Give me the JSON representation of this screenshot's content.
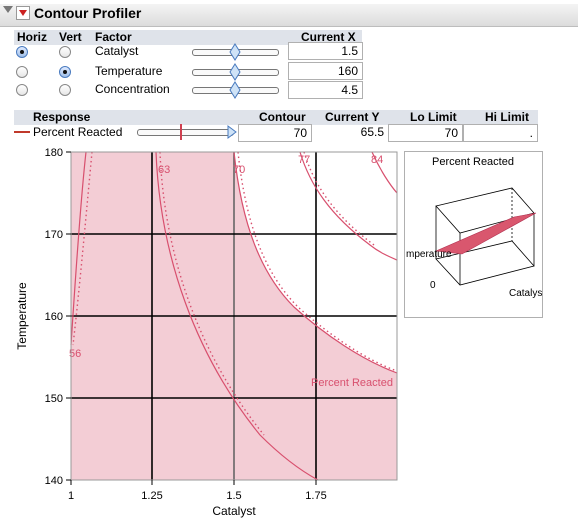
{
  "title": "Contour Profiler",
  "factor_headers": {
    "horiz": "Horiz",
    "vert": "Vert",
    "factor": "Factor",
    "current_x": "Current X"
  },
  "factors": [
    {
      "name": "Catalyst",
      "horiz": true,
      "vert": false,
      "value": "1.5",
      "slider": 0.5
    },
    {
      "name": "Temperature",
      "horiz": false,
      "vert": true,
      "value": "160",
      "slider": 0.5
    },
    {
      "name": "Concentration",
      "horiz": false,
      "vert": false,
      "value": "4.5",
      "slider": 0.5
    }
  ],
  "response_headers": {
    "response": "Response",
    "contour": "Contour",
    "current_y": "Current Y",
    "lo_limit": "Lo Limit",
    "hi_limit": "Hi Limit"
  },
  "response": {
    "name": "Percent Reacted",
    "contour": "70",
    "current_y": "65.5",
    "lo_limit": "70",
    "hi_limit": ".",
    "slider": 0.5
  },
  "plot": {
    "xlabel": "Catalyst",
    "ylabel": "Temperature",
    "x_ticks": [
      "1",
      "1.25",
      "1.5",
      "1.75"
    ],
    "y_ticks": [
      "180",
      "170",
      "160",
      "150",
      "140"
    ],
    "contour_labels": [
      "63",
      "70",
      "77",
      "84",
      "56"
    ],
    "region_label": "Percent Reacted",
    "shade_color": "#f3cdd5",
    "line_color": "#d8506e"
  },
  "surface": {
    "title": "Percent Reacted",
    "axis_temp": "mperature",
    "axis_zero": "0",
    "axis_cat": "Catalyst",
    "color": "#d9576e"
  }
}
